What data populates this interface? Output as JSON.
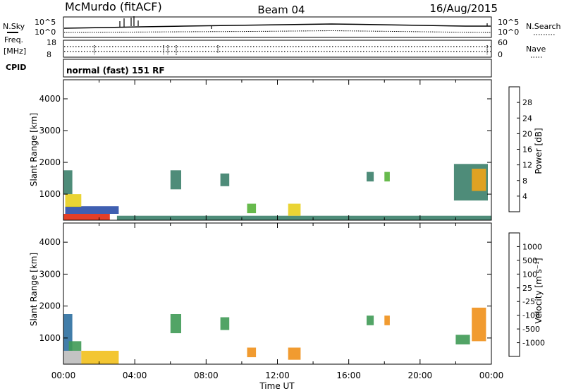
{
  "header": {
    "station": "McMurdo (fitACF)",
    "beam": "Beam 04",
    "date": "16/Aug/2015"
  },
  "noise_panel": {
    "left_label": "N.Sky",
    "right_label": "N.Search",
    "left_ticks": [
      "10^5",
      "10^0"
    ],
    "right_ticks": [
      "10^5",
      "10^0"
    ]
  },
  "freq_panel": {
    "left_label_1": "Freq.",
    "left_label_2": "[MHz]",
    "left_ticks": [
      "18",
      "8"
    ],
    "right_label": "Nave",
    "right_ticks": [
      "60",
      "0"
    ]
  },
  "cpid_panel": {
    "label": "CPID",
    "mode": "normal (fast) 151 RF"
  },
  "x_axis": {
    "label": "Time UT",
    "ticks": [
      "00:00",
      "04:00",
      "08:00",
      "12:00",
      "16:00",
      "20:00",
      "00:00"
    ]
  },
  "power_colorbar": {
    "label": "Power [dB]",
    "ticks": [
      "4",
      "8",
      "12",
      "16",
      "20",
      "24",
      "28"
    ],
    "colors": [
      "#1428e6",
      "#2a4ea8",
      "#3b7f6a",
      "#56b33a",
      "#e8cf1e",
      "#f0a418",
      "#ec6a12",
      "#e02a10"
    ]
  },
  "velocity_colorbar": {
    "label": "Velocity [m s⁻¹]",
    "ticks": [
      "1000",
      "500",
      "100",
      "25",
      "-25",
      "-100",
      "-500",
      "-1000"
    ],
    "colors": [
      "#1e3cc8",
      "#2c6fa0",
      "#3f9a55",
      "#6ccc3a",
      "#bdbdbd",
      "#f2c01c",
      "#f0901a",
      "#ea5a14",
      "#e0141a"
    ]
  },
  "chart_data": [
    {
      "type": "line",
      "title": "N.Sky / N.Search",
      "x": [
        "00:00",
        "04:00",
        "08:00",
        "12:00",
        "16:00",
        "20:00",
        "24:00"
      ],
      "series": [
        {
          "name": "N.Sky",
          "values": [
            2.2,
            2.3,
            2.5,
            2.6,
            2.7,
            2.5,
            2.3
          ]
        },
        {
          "name": "N.Search",
          "values": [
            0.3,
            0.5,
            0.6,
            0.7,
            0.8,
            0.6,
            0.5
          ]
        }
      ],
      "ylim": [
        0,
        5
      ],
      "log_scale": true
    },
    {
      "type": "line",
      "title": "Freq. / Nave",
      "x": [
        "00:00",
        "04:00",
        "08:00",
        "12:00",
        "16:00",
        "20:00",
        "24:00"
      ],
      "series": [
        {
          "name": "Freq.",
          "values": [
            10,
            10,
            10,
            10,
            10,
            10,
            10
          ]
        },
        {
          "name": "Nave",
          "values": [
            28,
            28,
            28,
            28,
            28,
            28,
            28
          ]
        }
      ],
      "ylim": [
        8,
        18
      ]
    },
    {
      "type": "heatmap",
      "title": "Power [dB]",
      "xlabel": "Time UT",
      "ylabel": "Slant Range [km]",
      "xlim": [
        0,
        24
      ],
      "ylim": [
        180,
        4600
      ],
      "yticks": [
        1000,
        2000,
        3000,
        4000
      ],
      "colorbar_ticks": [
        4,
        8,
        12,
        16,
        20,
        24,
        28
      ],
      "regions": [
        {
          "t": [
            0.0,
            2.6
          ],
          "r": [
            180,
            380
          ],
          "value": 28
        },
        {
          "t": [
            0.1,
            3.1
          ],
          "r": [
            380,
            620
          ],
          "value": 6
        },
        {
          "t": [
            0.1,
            1.0
          ],
          "r": [
            600,
            1000
          ],
          "value": 16
        },
        {
          "t": [
            0.0,
            0.5
          ],
          "r": [
            1000,
            1750
          ],
          "value": 8
        },
        {
          "t": [
            3.0,
            24.0
          ],
          "r": [
            180,
            320
          ],
          "value": 10
        },
        {
          "t": [
            6.0,
            6.6
          ],
          "r": [
            1150,
            1750
          ],
          "value": 8
        },
        {
          "t": [
            8.8,
            9.3
          ],
          "r": [
            1250,
            1650
          ],
          "value": 8
        },
        {
          "t": [
            10.3,
            10.8
          ],
          "r": [
            400,
            700
          ],
          "value": 12
        },
        {
          "t": [
            12.6,
            13.3
          ],
          "r": [
            320,
            700
          ],
          "value": 16
        },
        {
          "t": [
            17.0,
            17.4
          ],
          "r": [
            1400,
            1700
          ],
          "value": 8
        },
        {
          "t": [
            18.0,
            18.3
          ],
          "r": [
            1400,
            1700
          ],
          "value": 12
        },
        {
          "t": [
            21.9,
            23.8
          ],
          "r": [
            800,
            1950
          ],
          "value": 8
        },
        {
          "t": [
            22.9,
            23.7
          ],
          "r": [
            1100,
            1800
          ],
          "value": 20
        }
      ]
    },
    {
      "type": "heatmap",
      "title": "Velocity [m s⁻¹]",
      "xlabel": "Time UT",
      "ylabel": "Slant Range [km]",
      "xlim": [
        0,
        24
      ],
      "ylim": [
        180,
        4600
      ],
      "yticks": [
        1000,
        2000,
        3000,
        4000
      ],
      "colorbar_ticks": [
        1000,
        500,
        100,
        25,
        -25,
        -100,
        -500,
        -1000
      ],
      "regions": [
        {
          "t": [
            0.0,
            1.0
          ],
          "r": [
            180,
            600
          ],
          "value": 0
        },
        {
          "t": [
            1.0,
            3.1
          ],
          "r": [
            180,
            600
          ],
          "value": -100
        },
        {
          "t": [
            0.0,
            0.5
          ],
          "r": [
            600,
            1750
          ],
          "value": 500
        },
        {
          "t": [
            0.3,
            1.0
          ],
          "r": [
            600,
            900
          ],
          "value": 100
        },
        {
          "t": [
            6.0,
            6.6
          ],
          "r": [
            1150,
            1750
          ],
          "value": 100
        },
        {
          "t": [
            8.8,
            9.3
          ],
          "r": [
            1250,
            1650
          ],
          "value": 100
        },
        {
          "t": [
            10.3,
            10.8
          ],
          "r": [
            400,
            700
          ],
          "value": -500
        },
        {
          "t": [
            12.6,
            13.3
          ],
          "r": [
            320,
            700
          ],
          "value": -500
        },
        {
          "t": [
            17.0,
            17.4
          ],
          "r": [
            1400,
            1700
          ],
          "value": 100
        },
        {
          "t": [
            18.0,
            18.3
          ],
          "r": [
            1400,
            1700
          ],
          "value": -500
        },
        {
          "t": [
            22.0,
            22.8
          ],
          "r": [
            800,
            1100
          ],
          "value": 100
        },
        {
          "t": [
            22.9,
            23.7
          ],
          "r": [
            900,
            1950
          ],
          "value": -500
        }
      ]
    }
  ]
}
